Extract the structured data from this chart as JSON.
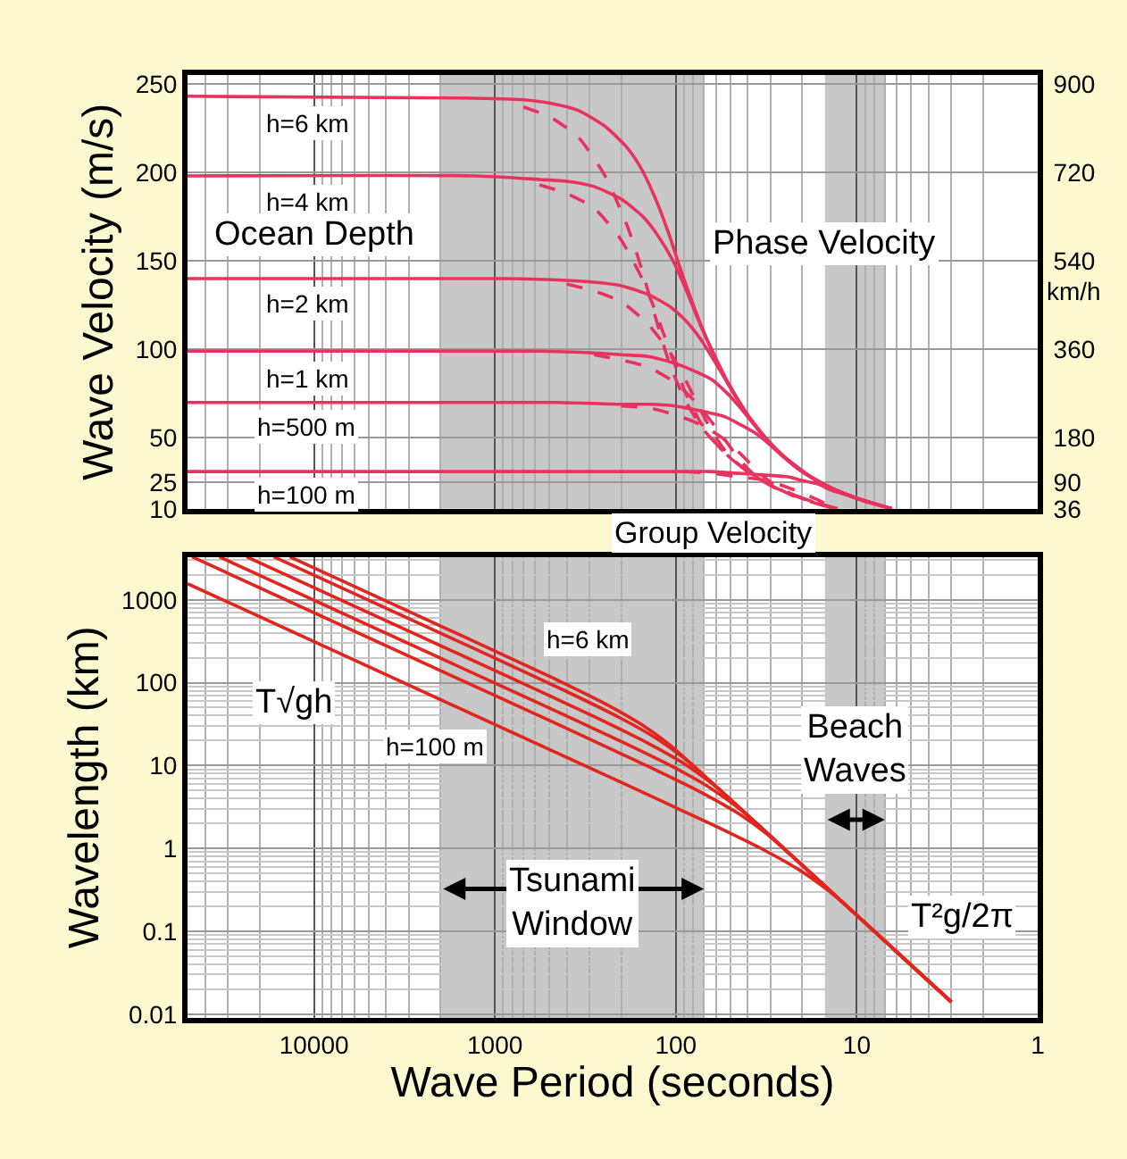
{
  "chart_data": [
    {
      "type": "line",
      "ylabel": "Wave Velocity (m/s)",
      "y2label": "km/h",
      "log": "x",
      "grid": true,
      "tick_labels": "y",
      "xlim": [
        50000,
        1
      ],
      "xticks": [
        10000,
        1000,
        100,
        10,
        1
      ],
      "ylim": [
        10,
        255
      ],
      "yticks": [
        10,
        25,
        50,
        100,
        150,
        200,
        250
      ],
      "y2lim": [
        36,
        918
      ],
      "y2ticks": [
        36,
        90,
        180,
        360,
        540,
        720,
        900
      ],
      "bands": [
        {
          "axis": "x",
          "from": 2000,
          "to": 70,
          "color": "#c8c8c8"
        },
        {
          "axis": "x",
          "from": 15,
          "to": 7,
          "color": "#c8c8c8"
        }
      ],
      "annotations": [
        "h=6 km",
        "h=4 km",
        "h=2 km",
        "h=1 km",
        "h=500 m",
        "h=100 m",
        "Ocean Depth",
        "Phase Velocity",
        "Group Velocity"
      ],
      "series": [
        {
          "color": "#e8335f",
          "x": [
            50000,
            1554,
            695,
            491,
            347,
            246,
            186,
            155,
            127,
            110,
            89.7,
            69.5,
            49.1,
            34.7,
            22.0,
            15.5,
            10,
            6.4
          ],
          "values": [
            243,
            242,
            241,
            239,
            235,
            226,
            214,
            202,
            183,
            166,
            139,
            109,
            77,
            54,
            34,
            24,
            16,
            10
          ]
        },
        {
          "color": "#e8335f",
          "line_style": "dashed",
          "x": [
            695,
            491,
            347,
            246,
            186,
            155,
            127,
            110,
            89.7,
            69.5,
            49.1,
            34.7,
            22.0,
            15.5,
            12.8
          ],
          "values": [
            237,
            231,
            220,
            198,
            170,
            146,
            115,
            94,
            72,
            54,
            38,
            27,
            17,
            12,
            10
          ]
        },
        {
          "color": "#e8335f",
          "x": [
            50000,
            1269,
            567.5,
            401,
            284,
            201,
            152,
            127,
            103.6,
            89.7,
            73.3,
            56.7,
            40.1,
            28.4,
            17.9,
            12.7,
            10,
            6.4
          ],
          "values": [
            198,
            198,
            196,
            195,
            192,
            185,
            175,
            165,
            150,
            136,
            114,
            89,
            63,
            44,
            28,
            20,
            16,
            10
          ]
        },
        {
          "color": "#e8335f",
          "line_style": "dashed",
          "x": [
            567.5,
            401,
            284,
            201,
            152,
            127,
            103.6,
            89.7,
            73.3,
            56.7,
            40.1,
            28.4,
            17.9,
            12.8
          ],
          "values": [
            193,
            188,
            180,
            162,
            139,
            119,
            94,
            77,
            59,
            44,
            31,
            22,
            14,
            10
          ]
        },
        {
          "color": "#e8335f",
          "x": [
            50000,
            897,
            401,
            284,
            200.6,
            141.8,
            107.2,
            89.7,
            73.2,
            63.4,
            51.8,
            40.1,
            28.4,
            20.1,
            12.7,
            10,
            6.4
          ],
          "values": [
            140,
            140,
            139,
            138,
            136,
            131,
            124,
            117,
            106,
            96,
            81,
            63,
            44,
            31,
            20,
            16,
            10
          ]
        },
        {
          "color": "#e8335f",
          "line_style": "dashed",
          "x": [
            401,
            284,
            200.6,
            141.8,
            107.2,
            89.7,
            73.2,
            63.4,
            51.8,
            40.1,
            28.4,
            20.1,
            12.8
          ],
          "values": [
            137,
            133,
            127,
            114,
            98,
            84,
            66,
            54,
            41,
            31,
            22,
            16,
            10
          ]
        },
        {
          "color": "#e8335f",
          "x": [
            50000,
            634,
            283.5,
            200.5,
            141.8,
            100.2,
            75.8,
            63.4,
            51.8,
            44.8,
            36.6,
            28.4,
            20.0,
            14.2,
            10,
            6.4
          ],
          "values": [
            99,
            99,
            98,
            97,
            96,
            92,
            87,
            83,
            75,
            68,
            57,
            44,
            31,
            22,
            16,
            10
          ]
        },
        {
          "color": "#e8335f",
          "line_style": "dashed",
          "x": [
            283.5,
            200.5,
            141.8,
            100.2,
            75.8,
            63.4,
            51.8,
            44.8,
            36.6,
            28.4,
            20.0,
            14.2,
            12.8
          ],
          "values": [
            97,
            94,
            90,
            81,
            69,
            59,
            47,
            38,
            29,
            22,
            16,
            11,
            10
          ]
        },
        {
          "color": "#e8335f",
          "x": [
            50000,
            449,
            200.8,
            142,
            100.4,
            71.0,
            53.7,
            44.9,
            36.7,
            31.7,
            25.9,
            20.1,
            14.2,
            10,
            6.4
          ],
          "values": [
            70,
            70,
            69,
            69,
            68,
            65,
            62,
            58,
            53,
            48,
            40,
            31,
            22,
            16,
            10
          ]
        },
        {
          "color": "#e8335f",
          "line_style": "dashed",
          "x": [
            200.8,
            142,
            100.4,
            71.0,
            53.7,
            44.9,
            36.7,
            31.7,
            25.9,
            20.1,
            14.2,
            12.8
          ],
          "values": [
            68,
            67,
            63,
            57,
            49,
            42,
            33,
            27,
            21,
            16,
            11,
            10
          ]
        },
        {
          "color": "#e8335f",
          "x": [
            50000,
            200.6,
            89.7,
            63.4,
            44.9,
            31.7,
            24.0,
            20.1,
            16.4,
            14.2,
            11.6,
            8.97,
            6.4
          ],
          "values": [
            31,
            31,
            31,
            31,
            30,
            29,
            28,
            26,
            24,
            21,
            18,
            14,
            10
          ]
        },
        {
          "color": "#e8335f",
          "line_style": "dashed",
          "x": [
            89.7,
            63.4,
            44.9,
            31.7,
            24.0,
            20.1,
            16.4,
            14.2,
            12.5
          ],
          "values": [
            31,
            30,
            28,
            26,
            22,
            19,
            15,
            12,
            10
          ]
        }
      ]
    },
    {
      "type": "line",
      "xlabel": "Wave Period (seconds)",
      "ylabel": "Wavelength (km)",
      "log": "xy",
      "grid": true,
      "xlim": [
        50000,
        1
      ],
      "xticks": [
        10000,
        1000,
        100,
        10,
        1
      ],
      "ylim": [
        0.009,
        3300
      ],
      "yticks": [
        0.01,
        0.1,
        1,
        10,
        100,
        1000
      ],
      "bands": [
        {
          "axis": "x",
          "from": 2000,
          "to": 70,
          "color": "#c8c8c8",
          "label": "Tsunami Window"
        },
        {
          "axis": "x",
          "from": 15,
          "to": 7,
          "color": "#c8c8c8",
          "label": "Beach Waves"
        }
      ],
      "annotations": [
        "h=6 km",
        "h=100 m",
        "T√gh",
        "T²g/2π"
      ],
      "series": [
        {
          "color": "#e0261f",
          "x": [
            13600,
            1554,
            491,
            246,
            155,
            110,
            69.5,
            49.1,
            34.7,
            22.0,
            15.5,
            10,
            3
          ],
          "values": [
            3300,
            376,
            117,
            55.7,
            31.3,
            18.3,
            7.54,
            3.77,
            1.88,
            0.755,
            0.377,
            0.156,
            0.014
          ]
        },
        {
          "color": "#e0261f",
          "x": [
            16660,
            1269,
            401,
            201,
            127,
            89.7,
            56.7,
            40.1,
            28.4,
            17.9,
            12.7,
            10,
            3
          ],
          "values": [
            3300,
            251,
            78.1,
            37.1,
            21.0,
            12.2,
            5.02,
            2.51,
            1.26,
            0.501,
            0.251,
            0.156,
            0.014
          ]
        },
        {
          "color": "#e0261f",
          "x": [
            23550,
            897,
            284,
            141.8,
            89.7,
            63.4,
            51.8,
            40.1,
            28.4,
            20.1,
            12.7,
            10,
            3
          ],
          "values": [
            3300,
            125.5,
            39.1,
            18.5,
            10.5,
            6.09,
            4.17,
            2.51,
            1.26,
            0.629,
            0.251,
            0.156,
            0.014
          ]
        },
        {
          "color": "#e0261f",
          "x": [
            33330,
            634,
            200.5,
            100.2,
            63.4,
            44.8,
            36.6,
            28.4,
            20.0,
            14.2,
            10,
            3
          ],
          "values": [
            3300,
            62.6,
            19.5,
            9.26,
            5.23,
            3.04,
            2.08,
            1.26,
            0.626,
            0.314,
            0.156,
            0.014
          ]
        },
        {
          "color": "#e0261f",
          "x": [
            47140,
            449,
            142,
            71.0,
            44.9,
            31.7,
            25.9,
            20.1,
            14.2,
            10,
            3
          ],
          "values": [
            3300,
            31.4,
            9.77,
            4.64,
            2.62,
            1.52,
            1.04,
            0.629,
            0.314,
            0.156,
            0.014
          ]
        },
        {
          "color": "#e0261f",
          "x": [
            50000,
            200.6,
            63.4,
            31.7,
            20.1,
            14.2,
            11.6,
            8.97,
            3
          ],
          "values": [
            1565,
            6.26,
            1.95,
            0.926,
            0.525,
            0.304,
            0.209,
            0.126,
            0.014
          ]
        }
      ]
    }
  ]
}
